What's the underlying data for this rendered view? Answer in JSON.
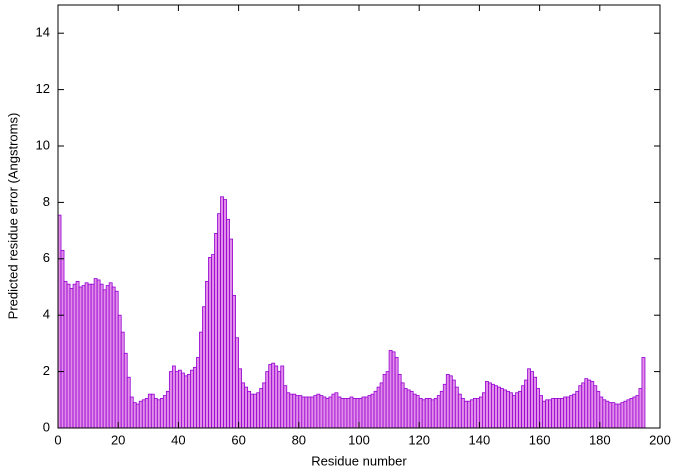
{
  "chart_data": {
    "type": "bar",
    "xlabel": "Residue number",
    "ylabel": "Predicted residue error (Angstroms)",
    "x": [
      0,
      1,
      2,
      3,
      4,
      5,
      6,
      7,
      8,
      9,
      10,
      11,
      12,
      13,
      14,
      15,
      16,
      17,
      18,
      19,
      20,
      21,
      22,
      23,
      24,
      25,
      26,
      27,
      28,
      29,
      30,
      31,
      32,
      33,
      34,
      35,
      36,
      37,
      38,
      39,
      40,
      41,
      42,
      43,
      44,
      45,
      46,
      47,
      48,
      49,
      50,
      51,
      52,
      53,
      54,
      55,
      56,
      57,
      58,
      59,
      60,
      61,
      62,
      63,
      64,
      65,
      66,
      67,
      68,
      69,
      70,
      71,
      72,
      73,
      74,
      75,
      76,
      77,
      78,
      79,
      80,
      81,
      82,
      83,
      84,
      85,
      86,
      87,
      88,
      89,
      90,
      91,
      92,
      93,
      94,
      95,
      96,
      97,
      98,
      99,
      100,
      101,
      102,
      103,
      104,
      105,
      106,
      107,
      108,
      109,
      110,
      111,
      112,
      113,
      114,
      115,
      116,
      117,
      118,
      119,
      120,
      121,
      122,
      123,
      124,
      125,
      126,
      127,
      128,
      129,
      130,
      131,
      132,
      133,
      134,
      135,
      136,
      137,
      138,
      139,
      140,
      141,
      142,
      143,
      144,
      145,
      146,
      147,
      148,
      149,
      150,
      151,
      152,
      153,
      154,
      155,
      156,
      157,
      158,
      159,
      160,
      161,
      162,
      163,
      164,
      165,
      166,
      167,
      168,
      169,
      170,
      171,
      172,
      173,
      174,
      175,
      176,
      177,
      178,
      179,
      180,
      181,
      182,
      183,
      184,
      185,
      186,
      187,
      188,
      189,
      190,
      191,
      192,
      193,
      194
    ],
    "values": [
      7.55,
      6.3,
      5.2,
      5.1,
      4.95,
      5.1,
      5.2,
      5.0,
      5.05,
      5.15,
      5.1,
      5.1,
      5.3,
      5.25,
      5.1,
      4.9,
      5.05,
      5.15,
      5.0,
      4.85,
      4.0,
      3.4,
      2.65,
      1.8,
      1.1,
      0.9,
      0.85,
      0.95,
      1.0,
      1.05,
      1.2,
      1.2,
      1.05,
      1.0,
      1.05,
      1.15,
      1.3,
      2.0,
      2.2,
      2.0,
      2.05,
      1.95,
      1.85,
      1.9,
      2.05,
      2.15,
      2.5,
      3.4,
      4.3,
      5.2,
      6.05,
      6.15,
      6.9,
      7.6,
      8.2,
      8.1,
      7.4,
      6.7,
      4.7,
      3.2,
      2.1,
      1.6,
      1.45,
      1.3,
      1.2,
      1.2,
      1.25,
      1.4,
      1.6,
      2.0,
      2.25,
      2.3,
      2.2,
      2.0,
      2.2,
      1.5,
      1.25,
      1.2,
      1.2,
      1.15,
      1.15,
      1.1,
      1.1,
      1.1,
      1.1,
      1.15,
      1.2,
      1.15,
      1.1,
      1.05,
      1.1,
      1.2,
      1.25,
      1.1,
      1.05,
      1.05,
      1.05,
      1.1,
      1.05,
      1.05,
      1.05,
      1.1,
      1.1,
      1.15,
      1.2,
      1.3,
      1.45,
      1.6,
      1.9,
      2.0,
      2.75,
      2.7,
      2.5,
      1.9,
      1.6,
      1.4,
      1.35,
      1.3,
      1.2,
      1.15,
      1.05,
      1.0,
      1.05,
      1.05,
      1.0,
      1.05,
      1.15,
      1.3,
      1.55,
      1.9,
      1.85,
      1.7,
      1.45,
      1.2,
      1.05,
      0.95,
      0.95,
      1.0,
      1.05,
      1.05,
      1.1,
      1.25,
      1.65,
      1.6,
      1.55,
      1.5,
      1.45,
      1.4,
      1.35,
      1.3,
      1.25,
      1.15,
      1.25,
      1.3,
      1.5,
      1.7,
      2.1,
      2.0,
      1.8,
      1.4,
      1.15,
      0.95,
      1.0,
      1.0,
      1.05,
      1.05,
      1.05,
      1.05,
      1.1,
      1.1,
      1.15,
      1.2,
      1.3,
      1.5,
      1.6,
      1.75,
      1.7,
      1.65,
      1.5,
      1.3,
      1.1,
      1.0,
      0.95,
      0.9,
      0.9,
      0.85,
      0.85,
      0.9,
      0.95,
      1.0,
      1.05,
      1.1,
      1.15,
      1.4,
      2.5
    ],
    "color": "#e28de8",
    "edgecolor": "#9400d3",
    "xlim": [
      0,
      200
    ],
    "xticks": [
      0,
      20,
      40,
      60,
      80,
      100,
      120,
      140,
      160,
      180,
      200
    ],
    "ylim": [
      0,
      15
    ],
    "yticks": [
      0,
      2,
      4,
      6,
      8,
      10,
      12,
      14
    ]
  }
}
